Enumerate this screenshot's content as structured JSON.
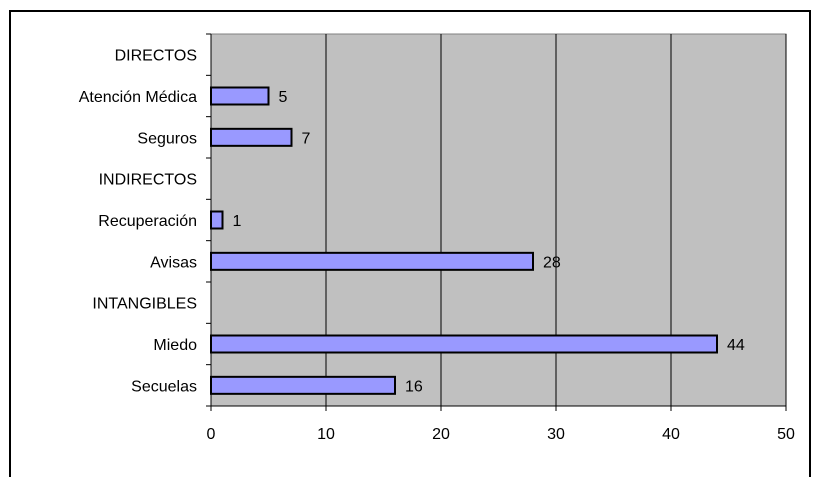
{
  "chart_data": {
    "type": "bar",
    "orientation": "horizontal",
    "categories": [
      "DIRECTOS",
      "Atención Médica",
      "Seguros",
      "INDIRECTOS",
      "Recuperación",
      "Avisas",
      "INTANGIBLES",
      "Miedo",
      "Secuelas"
    ],
    "values": [
      null,
      5,
      7,
      null,
      1,
      28,
      null,
      44,
      16
    ],
    "data_labels": [
      "",
      "5",
      "7",
      "",
      "1",
      "28",
      "",
      "44",
      "16"
    ],
    "xlim": [
      0,
      50
    ],
    "x_ticks": [
      "0",
      "10",
      "20",
      "30",
      "40",
      "50"
    ],
    "grid": "vertical",
    "legend": "none",
    "colors": {
      "plot_background": "#c0c0c0",
      "bar_fill": "#9999ff",
      "bar_stroke": "#000000",
      "gridline": "#000000"
    }
  }
}
